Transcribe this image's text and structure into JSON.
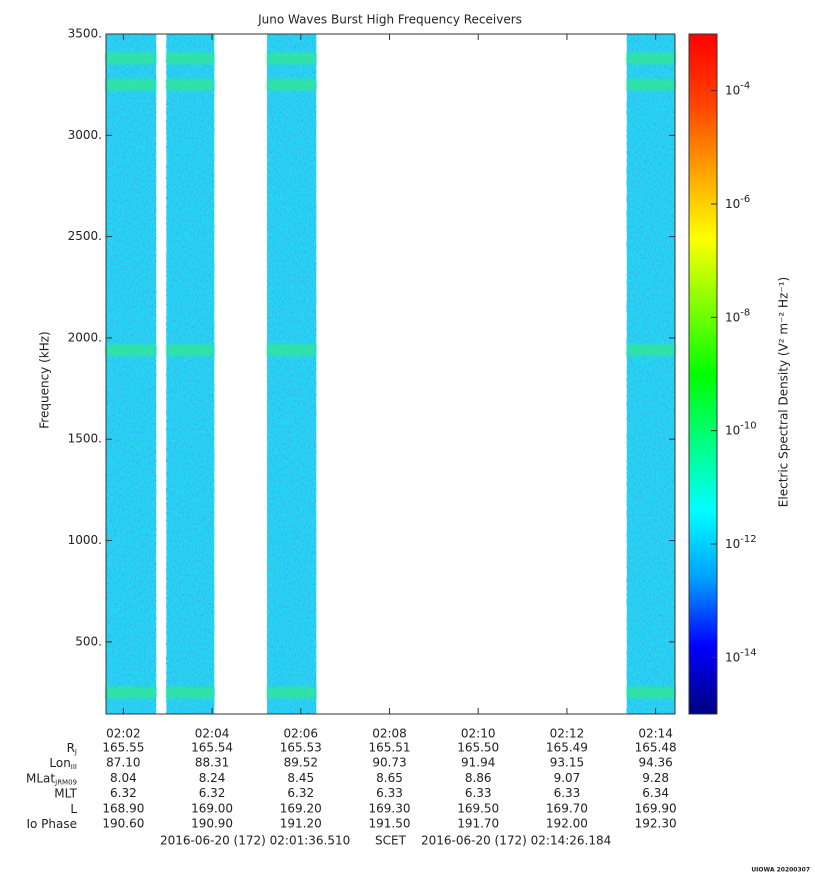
{
  "chart_data": {
    "type": "spectrogram",
    "title": "Juno Waves Burst High Frequency Receivers",
    "ylabel": "Frequency (kHz)",
    "ylim": [
      144,
      3500
    ],
    "yticks": [
      {
        "value": 500,
        "label": "500."
      },
      {
        "value": 1000,
        "label": "1000."
      },
      {
        "value": 1500,
        "label": "1500."
      },
      {
        "value": 2000,
        "label": "2000."
      },
      {
        "value": 2500,
        "label": "2500."
      },
      {
        "value": 3000,
        "label": "3000."
      },
      {
        "value": 3500,
        "label": "3500."
      }
    ],
    "xlim": [
      121.6085,
      134.4364
    ],
    "xticks": [
      {
        "value": 122,
        "label": "02:02"
      },
      {
        "value": 124,
        "label": "02:04"
      },
      {
        "value": 126,
        "label": "02:06"
      },
      {
        "value": 128,
        "label": "02:08"
      },
      {
        "value": 130,
        "label": "02:10"
      },
      {
        "value": 132,
        "label": "02:12"
      },
      {
        "value": 134,
        "label": "02:14"
      }
    ],
    "bursts": [
      [
        121.6085,
        122.74
      ],
      [
        122.97,
        124.05
      ],
      [
        125.24,
        126.35
      ],
      [
        133.35,
        134.4364
      ]
    ],
    "burst_color": "#22d8ee",
    "bands": [
      250,
      1940,
      3250,
      3380
    ],
    "band_color": "#30e890",
    "colorbar": {
      "label": "Electric Spectral Density (V² m⁻² Hz⁻¹)",
      "log": true,
      "zlim": [
        1e-15,
        0.001
      ],
      "zticks": [
        {
          "value": 1e-14,
          "label": "10",
          "sup": "-14"
        },
        {
          "value": 1e-12,
          "label": "10",
          "sup": "-12"
        },
        {
          "value": 1e-10,
          "label": "10",
          "sup": "-10"
        },
        {
          "value": 1e-08,
          "label": "10",
          "sup": "-8"
        },
        {
          "value": 1e-06,
          "label": "10",
          "sup": "-6"
        },
        {
          "value": 0.0001,
          "label": "10",
          "sup": "-4"
        }
      ],
      "colormap": [
        "#000080",
        "#0000ff",
        "#00a0ff",
        "#00ffff",
        "#00ff80",
        "#00ff00",
        "#80ff00",
        "#ffff00",
        "#ffa000",
        "#ff4000",
        "#ff0000"
      ]
    },
    "ephemeris": [
      {
        "label": "R",
        "sub": "J",
        "values": [
          "165.55",
          "165.54",
          "165.53",
          "165.51",
          "165.50",
          "165.49",
          "165.48"
        ]
      },
      {
        "label": "Lon",
        "sub": "III",
        "values": [
          "87.10",
          "88.31",
          "89.52",
          "90.73",
          "91.94",
          "93.15",
          "94.36"
        ]
      },
      {
        "label": "MLat",
        "sub": "JRM09",
        "values": [
          "8.04",
          "8.24",
          "8.45",
          "8.65",
          "8.86",
          "9.07",
          "9.28"
        ]
      },
      {
        "label": "MLT",
        "values": [
          "6.32",
          "6.32",
          "6.32",
          "6.33",
          "6.33",
          "6.33",
          "6.34"
        ]
      },
      {
        "label": "L",
        "values": [
          "168.90",
          "169.00",
          "169.20",
          "169.30",
          "169.50",
          "169.70",
          "169.90"
        ]
      },
      {
        "label": "Io Phase",
        "values": [
          "190.60",
          "190.90",
          "191.20",
          "191.50",
          "191.70",
          "192.00",
          "192.30"
        ]
      }
    ],
    "footer": {
      "start": "2016-06-20 (172) 02:01:36.510",
      "frame": "SCET",
      "end": "2016-06-20 (172) 02:14:26.184"
    },
    "stamp": "UIOWA 20200307"
  }
}
